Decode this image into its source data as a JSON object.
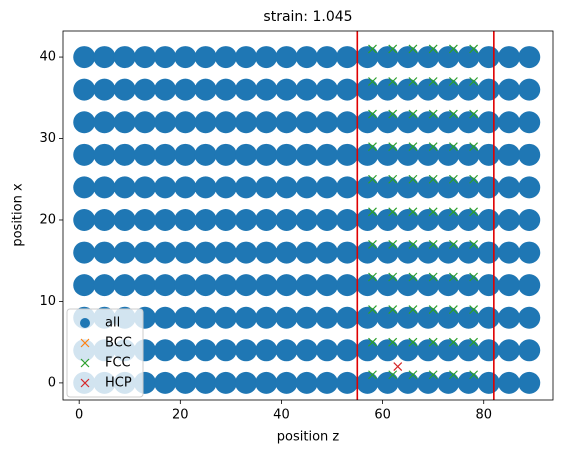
{
  "chart_data": {
    "type": "scatter",
    "title": "strain: 1.045",
    "xlabel": "position z",
    "ylabel": "position x",
    "xlim": [
      -3.2,
      93.7
    ],
    "ylim": [
      -2.1,
      43.2
    ],
    "xticks": [
      0,
      20,
      40,
      60,
      80
    ],
    "yticks": [
      0,
      10,
      20,
      30,
      40
    ],
    "legend": "lower left",
    "vlines": [
      55,
      82
    ],
    "vline_color": "#e00000",
    "series": [
      {
        "name": "all",
        "marker": "o",
        "color": "#1f77b4",
        "x": [
          1,
          5,
          9,
          13,
          17,
          21,
          25,
          29,
          33,
          37,
          41,
          45,
          49,
          53,
          57,
          61,
          65,
          69,
          73,
          77,
          81,
          85,
          89,
          1,
          5,
          9,
          13,
          17,
          21,
          25,
          29,
          33,
          37,
          41,
          45,
          49,
          53,
          57,
          61,
          65,
          69,
          73,
          77,
          81,
          85,
          89,
          1,
          5,
          9,
          13,
          17,
          21,
          25,
          29,
          33,
          37,
          41,
          45,
          49,
          53,
          57,
          61,
          65,
          69,
          73,
          77,
          81,
          85,
          89,
          1,
          5,
          9,
          13,
          17,
          21,
          25,
          29,
          33,
          37,
          41,
          45,
          49,
          53,
          57,
          61,
          65,
          69,
          73,
          77,
          81,
          85,
          89,
          1,
          5,
          9,
          13,
          17,
          21,
          25,
          29,
          33,
          37,
          41,
          45,
          49,
          53,
          57,
          61,
          65,
          69,
          73,
          77,
          81,
          85,
          89,
          1,
          5,
          9,
          13,
          17,
          21,
          25,
          29,
          33,
          37,
          41,
          45,
          49,
          53,
          57,
          61,
          65,
          69,
          73,
          77,
          81,
          85,
          89,
          1,
          5,
          9,
          13,
          17,
          21,
          25,
          29,
          33,
          37,
          41,
          45,
          49,
          53,
          57,
          61,
          65,
          69,
          73,
          77,
          81,
          85,
          89,
          1,
          5,
          9,
          13,
          17,
          21,
          25,
          29,
          33,
          37,
          41,
          45,
          49,
          53,
          57,
          61,
          65,
          69,
          73,
          77,
          81,
          85,
          89,
          1,
          5,
          9,
          13,
          17,
          21,
          25,
          29,
          33,
          37,
          41,
          45,
          49,
          53,
          57,
          61,
          65,
          69,
          73,
          77,
          81,
          85,
          89,
          1,
          5,
          9,
          13,
          17,
          21,
          25,
          29,
          33,
          37,
          41,
          45,
          49,
          53,
          57,
          61,
          65,
          69,
          73,
          77,
          81,
          85,
          89,
          1,
          5,
          9,
          13,
          17,
          21,
          25,
          29,
          33,
          37,
          41,
          45,
          49,
          53,
          57,
          61,
          65,
          69,
          73,
          77,
          81,
          85,
          89
        ],
        "values": [
          0,
          0,
          0,
          0,
          0,
          0,
          0,
          0,
          0,
          0,
          0,
          0,
          0,
          0,
          0,
          0,
          0,
          0,
          0,
          0,
          0,
          0,
          0,
          4,
          4,
          4,
          4,
          4,
          4,
          4,
          4,
          4,
          4,
          4,
          4,
          4,
          4,
          4,
          4,
          4,
          4,
          4,
          4,
          4,
          4,
          4,
          8,
          8,
          8,
          8,
          8,
          8,
          8,
          8,
          8,
          8,
          8,
          8,
          8,
          8,
          8,
          8,
          8,
          8,
          8,
          8,
          8,
          8,
          8,
          12,
          12,
          12,
          12,
          12,
          12,
          12,
          12,
          12,
          12,
          12,
          12,
          12,
          12,
          12,
          12,
          12,
          12,
          12,
          12,
          12,
          12,
          12,
          16,
          16,
          16,
          16,
          16,
          16,
          16,
          16,
          16,
          16,
          16,
          16,
          16,
          16,
          16,
          16,
          16,
          16,
          16,
          16,
          16,
          16,
          16,
          20,
          20,
          20,
          20,
          20,
          20,
          20,
          20,
          20,
          20,
          20,
          20,
          20,
          20,
          20,
          20,
          20,
          20,
          20,
          20,
          20,
          20,
          20,
          24,
          24,
          24,
          24,
          24,
          24,
          24,
          24,
          24,
          24,
          24,
          24,
          24,
          24,
          24,
          24,
          24,
          24,
          24,
          24,
          24,
          24,
          24,
          28,
          28,
          28,
          28,
          28,
          28,
          28,
          28,
          28,
          28,
          28,
          28,
          28,
          28,
          28,
          28,
          28,
          28,
          28,
          28,
          28,
          28,
          28,
          32,
          32,
          32,
          32,
          32,
          32,
          32,
          32,
          32,
          32,
          32,
          32,
          32,
          32,
          32,
          32,
          32,
          32,
          32,
          32,
          32,
          32,
          32,
          36,
          36,
          36,
          36,
          36,
          36,
          36,
          36,
          36,
          36,
          36,
          36,
          36,
          36,
          36,
          36,
          36,
          36,
          36,
          36,
          36,
          36,
          36,
          40,
          40,
          40,
          40,
          40,
          40,
          40,
          40,
          40,
          40,
          40,
          40,
          40,
          40,
          40,
          40,
          40,
          40,
          40,
          40,
          40,
          40,
          40
        ]
      },
      {
        "name": "BCC",
        "marker": "x",
        "color": "#ff7f0e",
        "x": [],
        "values": []
      },
      {
        "name": "FCC",
        "marker": "x",
        "color": "#2ca02c",
        "x": [
          58,
          62,
          66,
          70,
          74,
          78,
          58,
          62,
          66,
          70,
          74,
          78,
          58,
          62,
          66,
          70,
          74,
          78,
          58,
          62,
          66,
          70,
          74,
          78,
          58,
          62,
          66,
          70,
          74,
          78,
          58,
          62,
          66,
          70,
          74,
          78,
          58,
          62,
          66,
          70,
          74,
          78,
          58,
          62,
          66,
          70,
          74,
          78,
          58,
          62,
          66,
          70,
          74,
          78,
          58,
          62,
          66,
          70,
          74,
          78,
          58,
          62,
          66,
          70,
          74,
          78
        ],
        "values": [
          1,
          1,
          1,
          1,
          1,
          1,
          5,
          5,
          5,
          5,
          5,
          5,
          9,
          9,
          9,
          9,
          9,
          9,
          13,
          13,
          13,
          13,
          13,
          13,
          17,
          17,
          17,
          17,
          17,
          17,
          21,
          21,
          21,
          21,
          21,
          21,
          25,
          25,
          25,
          25,
          25,
          25,
          29,
          29,
          29,
          29,
          29,
          29,
          33,
          33,
          33,
          33,
          33,
          33,
          37,
          37,
          37,
          37,
          37,
          37,
          41,
          41,
          41,
          41,
          41,
          41
        ]
      },
      {
        "name": "HCP",
        "marker": "x",
        "color": "#d62728",
        "x": [
          63
        ],
        "values": [
          2
        ]
      }
    ]
  }
}
